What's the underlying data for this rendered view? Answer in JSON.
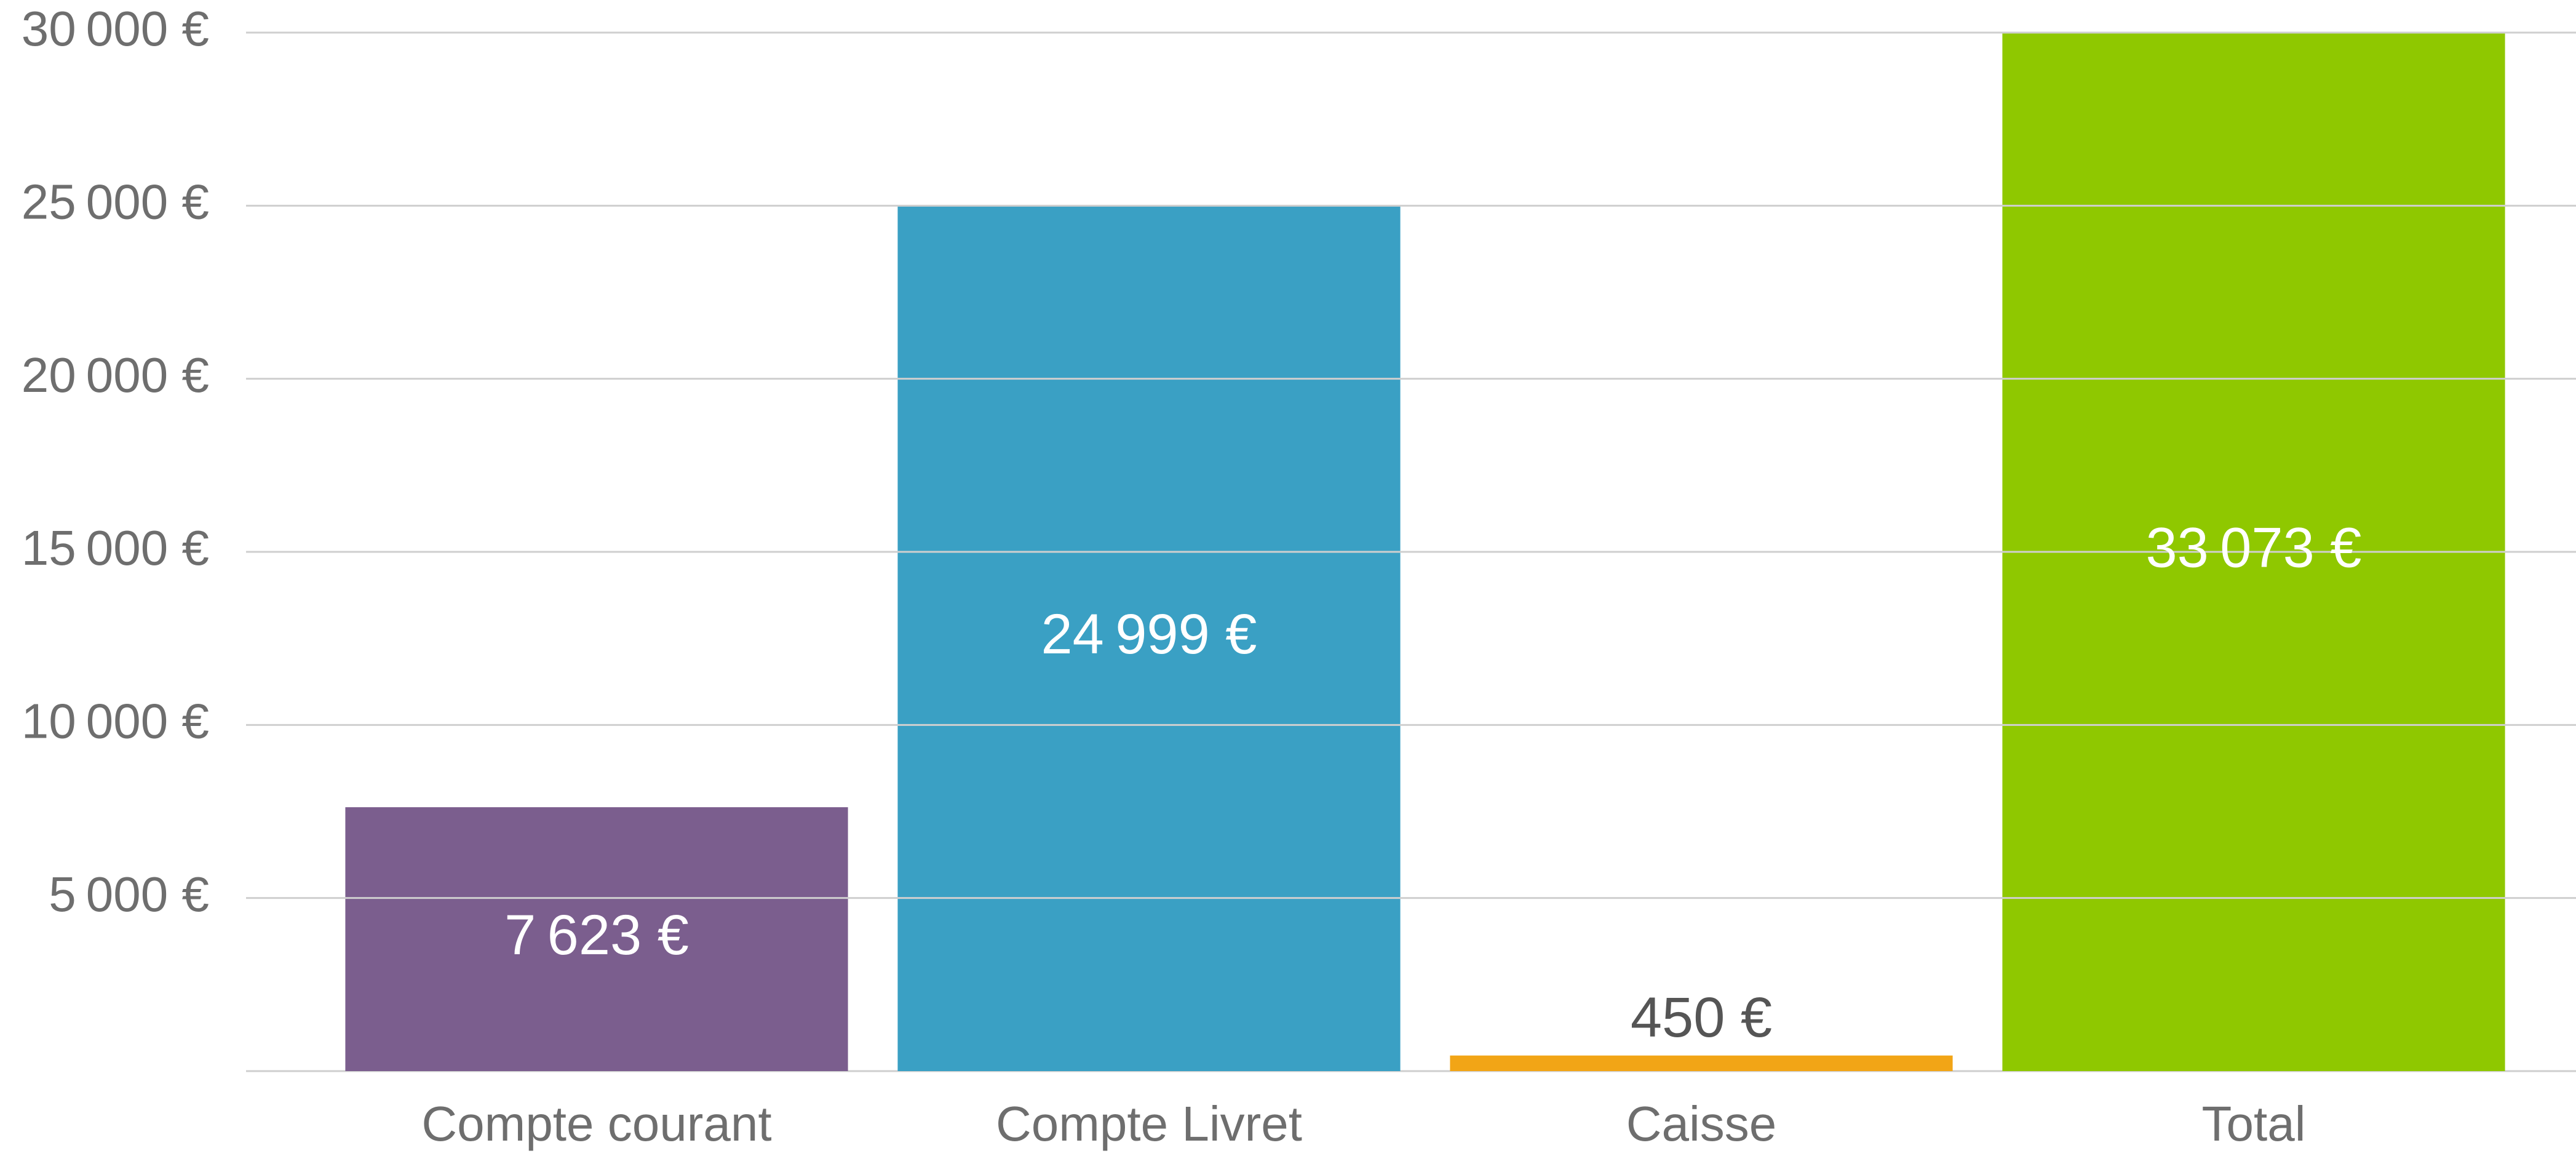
{
  "chart_data": {
    "type": "bar",
    "categories": [
      "Compte courant",
      "Compte Livret",
      "Caisse",
      "Total"
    ],
    "values": [
      7623,
      24999,
      450,
      33073
    ],
    "value_labels": [
      "7 623 €",
      "24 999 €",
      "450 €",
      "33 073 €"
    ],
    "colors": [
      "#7b5e8e",
      "#3aa0c4",
      "#f2a516",
      "#8fc800"
    ],
    "ylim": [
      0,
      30000
    ],
    "yticks": [
      {
        "value": 5000,
        "label": "5 000 €"
      },
      {
        "value": 10000,
        "label": "10 000 €"
      },
      {
        "value": 15000,
        "label": "15 000 €"
      },
      {
        "value": 20000,
        "label": "20 000 €"
      },
      {
        "value": 25000,
        "label": "25 000 €"
      },
      {
        "value": 30000,
        "label": "30 000 €"
      }
    ],
    "grid": true
  }
}
